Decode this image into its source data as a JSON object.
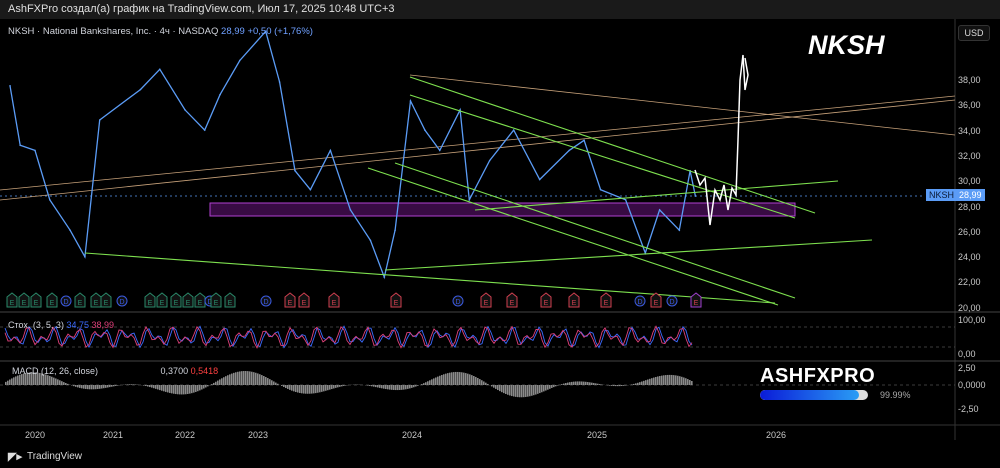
{
  "topbar": {
    "text": "AshFXPro создал(а) график на TradingView.com, Июл 17, 2025 10:48 UTC+3"
  },
  "legend": {
    "symbol": "NKSH",
    "name": "National Bankshares, Inc.",
    "interval": "4ч",
    "exchange": "NASDAQ",
    "price": "28,99",
    "change": "+0,50 (+1,76%)"
  },
  "title_big": "NKSH",
  "currency": "USD",
  "price_axis": [
    "38,00",
    "36,00",
    "34,00",
    "32,00",
    "30,00",
    "28,00",
    "26,00",
    "24,00",
    "22,00",
    "20,00"
  ],
  "price_tag": {
    "symbol": "NKSH",
    "value": "28,99"
  },
  "stoch": {
    "label": "Стох. (3, 5, 3)",
    "k": "34,75",
    "d": "38,99",
    "axis": [
      "100,00",
      "0,00"
    ]
  },
  "macd": {
    "label": "MACD (12, 26, close)",
    "v1": "0,3700",
    "v2": "0,5418",
    "axis": [
      "2,50",
      "0,0000",
      "-2,50"
    ]
  },
  "time_axis": [
    "2020",
    "2021",
    "2022",
    "2023",
    "2024",
    "2025",
    "2026"
  ],
  "watermark": {
    "brand": "ASHFXPRO",
    "progress": 0.9999,
    "progress_label": "99.99%"
  },
  "footer": {
    "logo": "TradingView"
  },
  "colors": {
    "price_line": "#5b9cf6",
    "trendline": "#7ee04f",
    "zone": "#a020c0",
    "stoch_k": "#3b6bff",
    "stoch_d": "#e0407a"
  },
  "events": [
    "E",
    "E",
    "E",
    "E",
    "D",
    "E",
    "E",
    "E",
    "D",
    "E",
    "E",
    "E",
    "E",
    "E",
    "D",
    "E",
    "E",
    "D",
    "E",
    "E",
    "E",
    "E",
    "D",
    "E",
    "E",
    "E",
    "E",
    "E",
    "D",
    "E",
    "D",
    "E"
  ],
  "chart_data": {
    "type": "line",
    "series": [
      {
        "points": [
          [
            2019.68,
            37.7
          ],
          [
            2019.81,
            33
          ],
          [
            2020.0,
            32.6
          ],
          [
            2020.19,
            28.7
          ],
          [
            2020.45,
            26.3
          ],
          [
            2020.64,
            24.2
          ],
          [
            2020.83,
            35
          ],
          [
            2021.38,
            37.4
          ],
          [
            2021.65,
            39
          ],
          [
            2022.0,
            35.8
          ],
          [
            2022.27,
            34.2
          ],
          [
            2022.48,
            37
          ],
          [
            2022.75,
            39.7
          ],
          [
            2023.05,
            42
          ],
          [
            2023.14,
            38
          ],
          [
            2023.24,
            31
          ],
          [
            2023.34,
            29.5
          ],
          [
            2023.47,
            32.6
          ],
          [
            2023.6,
            27.9
          ],
          [
            2023.73,
            25.5
          ],
          [
            2023.82,
            22.6
          ],
          [
            2023.89,
            26.3
          ],
          [
            2023.99,
            36.5
          ],
          [
            2024.07,
            34.2
          ],
          [
            2024.15,
            32.6
          ],
          [
            2024.26,
            35.8
          ],
          [
            2024.31,
            28.7
          ],
          [
            2024.42,
            31.8
          ],
          [
            2024.55,
            34.2
          ],
          [
            2024.69,
            30.3
          ],
          [
            2024.85,
            32.6
          ],
          [
            2024.93,
            33.4
          ],
          [
            2025.02,
            29.5
          ],
          [
            2025.16,
            28.7
          ],
          [
            2025.27,
            24.5
          ],
          [
            2025.35,
            27.9
          ],
          [
            2025.46,
            26.3
          ],
          [
            2025.52,
            31
          ],
          [
            2025.55,
            28.99
          ]
        ]
      }
    ],
    "ylim": [
      20,
      38
    ],
    "xticks": [
      "2020",
      "2021",
      "2022",
      "2023",
      "2024",
      "2025",
      "2026"
    ]
  }
}
